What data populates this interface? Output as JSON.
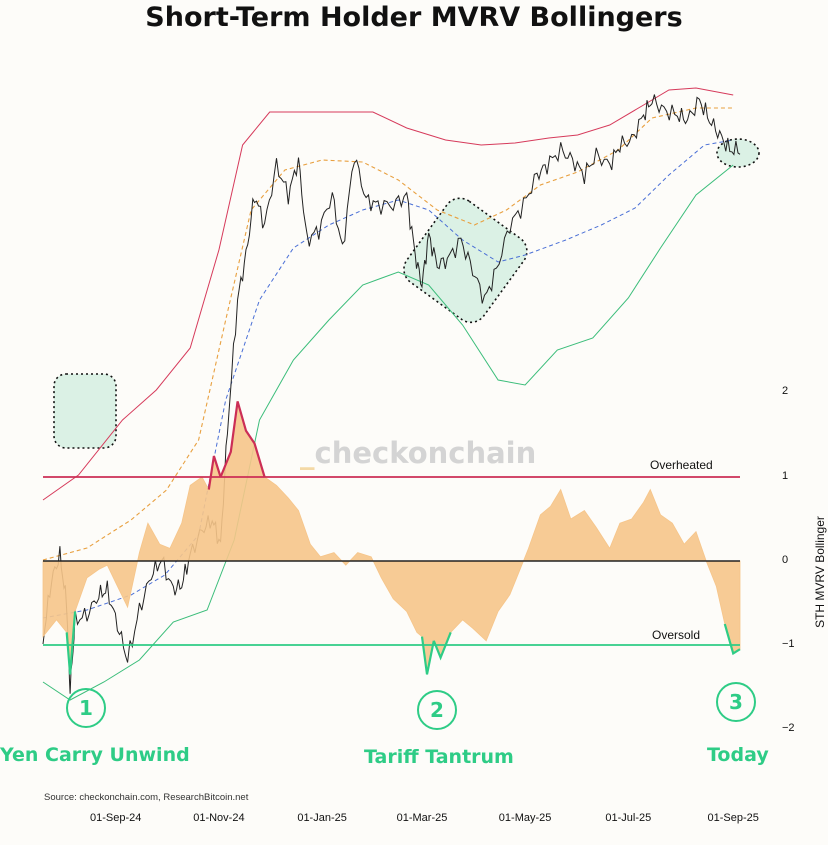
{
  "title": "Short-Term Holder MVRV Bollingers",
  "source": "Source: checkonchain.com, ResearchBitcoin.net",
  "watermark": "checkonchain",
  "watermark_prefix": "_",
  "colors": {
    "price": "#222222",
    "upper_band": "#d63a5b",
    "middle_band": "#e8a040",
    "lower_band": "#3bbd7a",
    "mid_dashed": "#4a6fd6",
    "oscillator_fill": "#f6c58a",
    "overheated": "#cc2e56",
    "oversold": "#2ecc86",
    "event": "#2ecc86",
    "highlight_fill": "#cfeedd"
  },
  "events": [
    {
      "number": "1",
      "label": "Yen Carry Unwind"
    },
    {
      "number": "2",
      "label": "Tariff Tantrum"
    },
    {
      "number": "3",
      "label": "Today"
    }
  ],
  "chart_data": {
    "type": "line",
    "xlabel": "",
    "ylabel": "STH MVRV Bollinger Oscillator",
    "x_tick_labels": [
      "01-Sep-24",
      "01-Nov-24",
      "01-Jan-25",
      "01-Mar-25",
      "01-May-25",
      "01-Jul-25",
      "01-Sep-25"
    ],
    "x_tick_dates": [
      "2024-09-01",
      "2024-11-01",
      "2025-01-01",
      "2025-03-01",
      "2025-05-01",
      "2025-07-01",
      "2025-09-01"
    ],
    "x_range": [
      "2024-07-20",
      "2025-09-05"
    ],
    "oscillator": {
      "ylim": [
        -2,
        2
      ],
      "y_tick_labels": [
        "2",
        "1",
        "0",
        "−1",
        "−2"
      ],
      "y_tick_values": [
        2,
        1,
        0,
        -1,
        -2
      ],
      "thresholds": [
        {
          "name": "Overheated",
          "value": 1
        },
        {
          "name": "Zero",
          "value": 0
        },
        {
          "name": "Oversold",
          "value": -1
        }
      ],
      "points": [
        [
          "2024-07-20",
          -0.9
        ],
        [
          "2024-07-28",
          -0.7
        ],
        [
          "2024-08-03",
          -0.85
        ],
        [
          "2024-08-05",
          -1.35
        ],
        [
          "2024-08-08",
          -0.6
        ],
        [
          "2024-08-15",
          -0.2
        ],
        [
          "2024-08-22",
          -0.1
        ],
        [
          "2024-08-27",
          -0.05
        ],
        [
          "2024-09-02",
          -0.3
        ],
        [
          "2024-09-08",
          -0.55
        ],
        [
          "2024-09-15",
          0.1
        ],
        [
          "2024-09-20",
          0.45
        ],
        [
          "2024-09-27",
          0.2
        ],
        [
          "2024-10-03",
          0.15
        ],
        [
          "2024-10-10",
          0.45
        ],
        [
          "2024-10-15",
          0.9
        ],
        [
          "2024-10-22",
          1.0
        ],
        [
          "2024-10-26",
          0.85
        ],
        [
          "2024-10-29",
          1.25
        ],
        [
          "2024-11-02",
          1.0
        ],
        [
          "2024-11-08",
          1.3
        ],
        [
          "2024-11-12",
          1.9
        ],
        [
          "2024-11-17",
          1.55
        ],
        [
          "2024-11-22",
          1.4
        ],
        [
          "2024-11-28",
          1.0
        ],
        [
          "2024-12-05",
          0.9
        ],
        [
          "2024-12-12",
          0.75
        ],
        [
          "2024-12-18",
          0.6
        ],
        [
          "2024-12-25",
          0.2
        ],
        [
          "2024-12-31",
          0.05
        ],
        [
          "2025-01-08",
          0.1
        ],
        [
          "2025-01-15",
          -0.05
        ],
        [
          "2025-01-22",
          0.1
        ],
        [
          "2025-01-30",
          0.05
        ],
        [
          "2025-02-05",
          -0.2
        ],
        [
          "2025-02-12",
          -0.45
        ],
        [
          "2025-02-20",
          -0.6
        ],
        [
          "2025-02-26",
          -0.85
        ],
        [
          "2025-03-01",
          -0.9
        ],
        [
          "2025-03-04",
          -1.35
        ],
        [
          "2025-03-08",
          -0.95
        ],
        [
          "2025-03-12",
          -1.15
        ],
        [
          "2025-03-18",
          -0.85
        ],
        [
          "2025-03-25",
          -0.7
        ],
        [
          "2025-03-31",
          -0.8
        ],
        [
          "2025-04-08",
          -0.95
        ],
        [
          "2025-04-15",
          -0.6
        ],
        [
          "2025-04-22",
          -0.4
        ],
        [
          "2025-04-28",
          -0.1
        ],
        [
          "2025-05-03",
          0.15
        ],
        [
          "2025-05-10",
          0.55
        ],
        [
          "2025-05-16",
          0.65
        ],
        [
          "2025-05-22",
          0.85
        ],
        [
          "2025-05-28",
          0.5
        ],
        [
          "2025-06-05",
          0.6
        ],
        [
          "2025-06-12",
          0.4
        ],
        [
          "2025-06-20",
          0.15
        ],
        [
          "2025-06-26",
          0.45
        ],
        [
          "2025-07-03",
          0.5
        ],
        [
          "2025-07-10",
          0.7
        ],
        [
          "2025-07-14",
          0.85
        ],
        [
          "2025-07-20",
          0.55
        ],
        [
          "2025-07-27",
          0.45
        ],
        [
          "2025-08-03",
          0.2
        ],
        [
          "2025-08-10",
          0.35
        ],
        [
          "2025-08-16",
          0.0
        ],
        [
          "2025-08-22",
          -0.3
        ],
        [
          "2025-08-27",
          -0.75
        ],
        [
          "2025-09-01",
          -1.1
        ],
        [
          "2025-09-05",
          -1.05
        ]
      ]
    },
    "price_panel": {
      "series": [
        {
          "role": "upper_band",
          "points": [
            [
              "2024-07-20",
              500
            ],
            [
              "2024-08-10",
              475
            ],
            [
              "2024-09-05",
              420
            ],
            [
              "2024-09-25",
              390
            ],
            [
              "2024-10-15",
              348
            ],
            [
              "2024-11-01",
              250
            ],
            [
              "2024-11-15",
              145
            ],
            [
              "2024-12-01",
              112
            ],
            [
              "2024-12-20",
              112
            ],
            [
              "2025-01-10",
              112
            ],
            [
              "2025-01-31",
              112
            ],
            [
              "2025-02-20",
              128
            ],
            [
              "2025-03-15",
              140
            ],
            [
              "2025-04-05",
              145
            ],
            [
              "2025-04-25",
              143
            ],
            [
              "2025-05-15",
              138
            ],
            [
              "2025-06-01",
              135
            ],
            [
              "2025-06-20",
              125
            ],
            [
              "2025-07-10",
              105
            ],
            [
              "2025-07-25",
              90
            ],
            [
              "2025-08-10",
              88
            ],
            [
              "2025-09-01",
              95
            ]
          ]
        },
        {
          "role": "middle_band",
          "points": [
            [
              "2024-07-20",
              560
            ],
            [
              "2024-08-15",
              548
            ],
            [
              "2024-09-10",
              520
            ],
            [
              "2024-10-01",
              490
            ],
            [
              "2024-10-20",
              440
            ],
            [
              "2024-11-05",
              320
            ],
            [
              "2024-11-20",
              210
            ],
            [
              "2024-12-10",
              170
            ],
            [
              "2025-01-01",
              160
            ],
            [
              "2025-01-25",
              162
            ],
            [
              "2025-02-15",
              180
            ],
            [
              "2025-03-10",
              210
            ],
            [
              "2025-04-01",
              225
            ],
            [
              "2025-04-20",
              210
            ],
            [
              "2025-05-10",
              185
            ],
            [
              "2025-06-01",
              172
            ],
            [
              "2025-06-25",
              150
            ],
            [
              "2025-07-15",
              118
            ],
            [
              "2025-08-10",
              108
            ],
            [
              "2025-09-01",
              108
            ]
          ]
        },
        {
          "role": "mid_dashed",
          "points": [
            [
              "2024-07-20",
              618
            ],
            [
              "2024-08-15",
              610
            ],
            [
              "2024-09-10",
              595
            ],
            [
              "2024-09-30",
              575
            ],
            [
              "2024-10-20",
              535
            ],
            [
              "2024-11-05",
              400
            ],
            [
              "2024-11-25",
              300
            ],
            [
              "2024-12-15",
              248
            ],
            [
              "2025-01-05",
              225
            ],
            [
              "2025-01-25",
              210
            ],
            [
              "2025-02-15",
              200
            ],
            [
              "2025-03-05",
              210
            ],
            [
              "2025-03-25",
              240
            ],
            [
              "2025-04-15",
              262
            ],
            [
              "2025-05-01",
              255
            ],
            [
              "2025-05-25",
              240
            ],
            [
              "2025-06-15",
              225
            ],
            [
              "2025-07-05",
              208
            ],
            [
              "2025-07-25",
              175
            ],
            [
              "2025-08-15",
              145
            ],
            [
              "2025-09-01",
              140
            ]
          ]
        },
        {
          "role": "lower_band",
          "points": [
            [
              "2024-07-20",
              682
            ],
            [
              "2024-08-05",
              700
            ],
            [
              "2024-08-25",
              682
            ],
            [
              "2024-09-15",
              660
            ],
            [
              "2024-10-05",
              622
            ],
            [
              "2024-10-25",
              610
            ],
            [
              "2024-11-10",
              540
            ],
            [
              "2024-11-25",
              420
            ],
            [
              "2024-12-15",
              360
            ],
            [
              "2025-01-05",
              320
            ],
            [
              "2025-01-25",
              285
            ],
            [
              "2025-02-15",
              272
            ],
            [
              "2025-03-05",
              285
            ],
            [
              "2025-03-25",
              325
            ],
            [
              "2025-04-15",
              380
            ],
            [
              "2025-05-01",
              385
            ],
            [
              "2025-05-20",
              350
            ],
            [
              "2025-06-10",
              338
            ],
            [
              "2025-07-01",
              298
            ],
            [
              "2025-07-20",
              248
            ],
            [
              "2025-08-10",
              195
            ],
            [
              "2025-09-01",
              165
            ]
          ]
        },
        {
          "role": "price",
          "points": [
            [
              "2024-07-20",
              640
            ],
            [
              "2024-07-25",
              580
            ],
            [
              "2024-07-30",
              555
            ],
            [
              "2024-08-03",
              605
            ],
            [
              "2024-08-05",
              690
            ],
            [
              "2024-08-08",
              620
            ],
            [
              "2024-08-15",
              615
            ],
            [
              "2024-08-22",
              595
            ],
            [
              "2024-08-27",
              590
            ],
            [
              "2024-09-02",
              625
            ],
            [
              "2024-09-08",
              660
            ],
            [
              "2024-09-15",
              610
            ],
            [
              "2024-09-22",
              575
            ],
            [
              "2024-09-28",
              560
            ],
            [
              "2024-10-05",
              590
            ],
            [
              "2024-10-10",
              585
            ],
            [
              "2024-10-15",
              555
            ],
            [
              "2024-10-22",
              530
            ],
            [
              "2024-10-28",
              520
            ],
            [
              "2024-11-02",
              545
            ],
            [
              "2024-11-06",
              430
            ],
            [
              "2024-11-12",
              300
            ],
            [
              "2024-11-17",
              255
            ],
            [
              "2024-11-22",
              195
            ],
            [
              "2024-11-28",
              225
            ],
            [
              "2024-12-05",
              165
            ],
            [
              "2024-12-12",
              195
            ],
            [
              "2024-12-18",
              160
            ],
            [
              "2024-12-23",
              240
            ],
            [
              "2024-12-30",
              230
            ],
            [
              "2025-01-07",
              195
            ],
            [
              "2025-01-13",
              250
            ],
            [
              "2025-01-20",
              155
            ],
            [
              "2025-01-27",
              200
            ],
            [
              "2025-02-03",
              205
            ],
            [
              "2025-02-12",
              205
            ],
            [
              "2025-02-20",
              195
            ],
            [
              "2025-02-25",
              255
            ],
            [
              "2025-03-01",
              285
            ],
            [
              "2025-03-05",
              235
            ],
            [
              "2025-03-10",
              265
            ],
            [
              "2025-03-16",
              260
            ],
            [
              "2025-03-24",
              240
            ],
            [
              "2025-03-31",
              270
            ],
            [
              "2025-04-07",
              300
            ],
            [
              "2025-04-14",
              270
            ],
            [
              "2025-04-22",
              225
            ],
            [
              "2025-04-30",
              205
            ],
            [
              "2025-05-08",
              175
            ],
            [
              "2025-05-14",
              165
            ],
            [
              "2025-05-22",
              150
            ],
            [
              "2025-05-29",
              160
            ],
            [
              "2025-06-05",
              175
            ],
            [
              "2025-06-12",
              155
            ],
            [
              "2025-06-20",
              165
            ],
            [
              "2025-06-26",
              145
            ],
            [
              "2025-07-03",
              140
            ],
            [
              "2025-07-10",
              115
            ],
            [
              "2025-07-15",
              100
            ],
            [
              "2025-07-22",
              110
            ],
            [
              "2025-07-30",
              115
            ],
            [
              "2025-08-05",
              120
            ],
            [
              "2025-08-12",
              100
            ],
            [
              "2025-08-18",
              120
            ],
            [
              "2025-08-24",
              135
            ],
            [
              "2025-08-30",
              150
            ],
            [
              "2025-09-05",
              150
            ]
          ]
        }
      ]
    }
  }
}
